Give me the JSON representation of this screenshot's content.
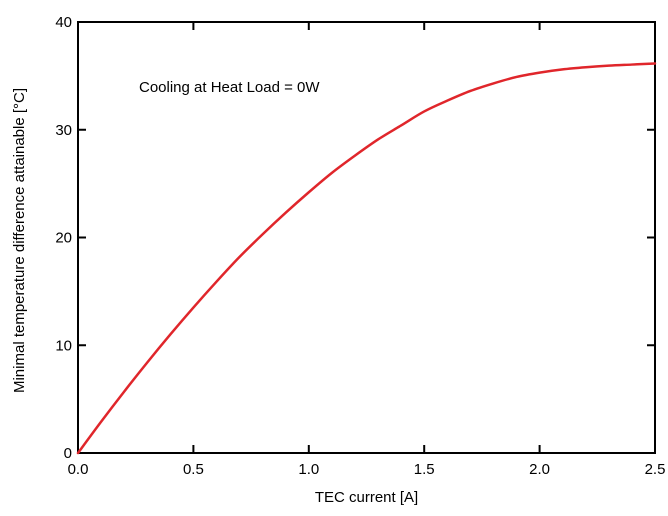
{
  "chart_data": {
    "type": "line",
    "title": "",
    "xlabel": "TEC current [A]",
    "ylabel": "Minimal temperature difference attainable [°C]",
    "xlim": [
      0,
      2.5
    ],
    "ylim": [
      0,
      40
    ],
    "x_ticks": [
      0.0,
      0.5,
      1.0,
      1.5,
      2.0,
      2.5
    ],
    "x_tick_labels": [
      "0.0",
      "0.5",
      "1.0",
      "1.5",
      "2.0",
      "2.5"
    ],
    "y_ticks": [
      0,
      10,
      20,
      30,
      40
    ],
    "y_tick_labels": [
      "0",
      "10",
      "20",
      "30",
      "40"
    ],
    "grid": false,
    "annotations": [
      {
        "text": "Cooling at Heat Load = 0W"
      }
    ],
    "series": [
      {
        "color": "#e0262b",
        "x": [
          0.0,
          0.1,
          0.2,
          0.3,
          0.4,
          0.5,
          0.6,
          0.7,
          0.8,
          0.9,
          1.0,
          1.1,
          1.2,
          1.3,
          1.4,
          1.5,
          1.6,
          1.7,
          1.8,
          1.9,
          2.0,
          2.1,
          2.2,
          2.3,
          2.4,
          2.5
        ],
        "y": [
          0.0,
          2.9,
          5.7,
          8.4,
          11.0,
          13.5,
          15.9,
          18.2,
          20.3,
          22.3,
          24.2,
          26.0,
          27.6,
          29.1,
          30.4,
          31.7,
          32.7,
          33.6,
          34.3,
          34.9,
          35.3,
          35.6,
          35.8,
          35.95,
          36.05,
          36.15
        ]
      }
    ]
  }
}
